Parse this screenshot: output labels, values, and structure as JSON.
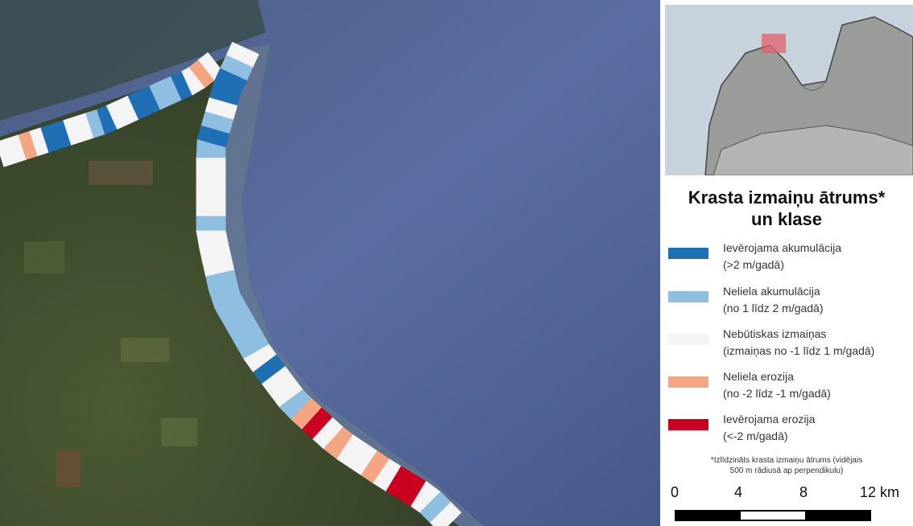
{
  "legend": {
    "title_line1": "Krasta izmaiņu ātrums*",
    "title_line2": "un klase",
    "items": [
      {
        "line1": "Ievērojama akumulācija",
        "line2": "(>2 m/gadā)",
        "color": "#1f6fb4"
      },
      {
        "line1": "Neliela akumulācija",
        "line2": "(no 1 līdz 2 m/gadā)",
        "color": "#8fbfe0"
      },
      {
        "line1": "Nebūtiskas izmaiņas",
        "line2": "(izmaiņas no -1 līdz 1 m/gadā)",
        "color": "#f4f4f4"
      },
      {
        "line1": "Neliela erozija",
        "line2": "(no -2 līdz -1 m/gadā)",
        "color": "#f4a582"
      },
      {
        "line1": "Ievērojama erozija",
        "line2": "(<-2 m/gadā)",
        "color": "#ca0020"
      }
    ],
    "footnote_line1": "*Izlīdzināts krasta izmaiņu ātrums (vidējais",
    "footnote_line2": "500 m rādiusā ap perpendikulu)"
  },
  "scale": {
    "labels": [
      "0",
      "4",
      "8",
      "12 km"
    ]
  },
  "colors": {
    "sea": "#5a6c9e",
    "land": "#3d4a2e",
    "inset_sea": "#c6d3dd",
    "inset_land": "#9a9c9a",
    "inset_highlight": "#e0606a"
  }
}
